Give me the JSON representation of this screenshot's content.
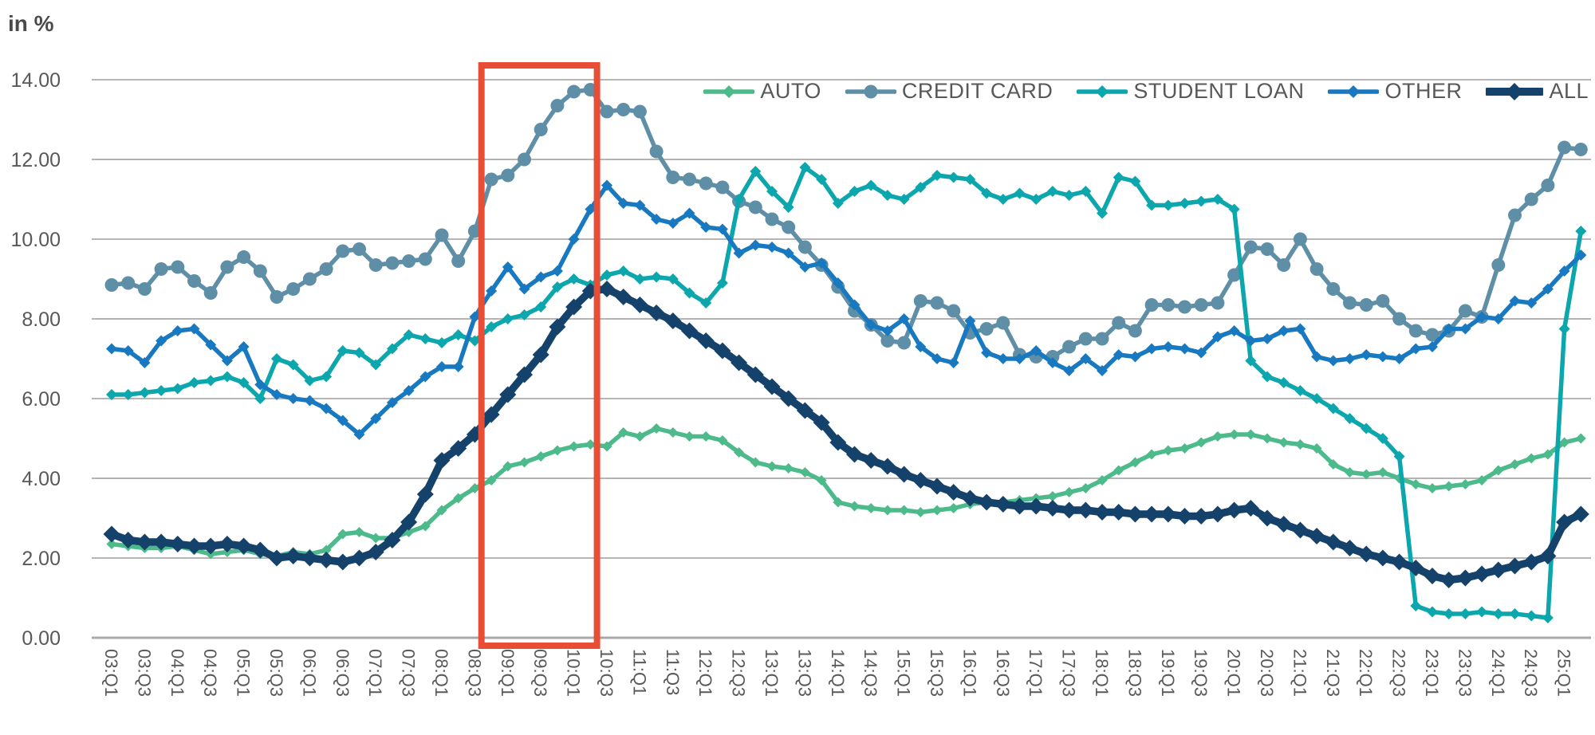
{
  "header": {
    "unit_label": "in %"
  },
  "colors": {
    "grid": "#b5b5b5",
    "axis_zero_line": "#a8a8a8",
    "axis_text": "#595959",
    "legend_text": "#57585a",
    "highlight_box": "#e84e35",
    "background": "#ffffff"
  },
  "legend": {
    "items": [
      {
        "label": "AUTO",
        "color": "#4cba8b",
        "marker": "diamond",
        "thick": false
      },
      {
        "label": "CREDIT CARD",
        "color": "#5f8fa6",
        "marker": "circle",
        "thick": false
      },
      {
        "label": "STUDENT LOAN",
        "color": "#0ca6ad",
        "marker": "diamond",
        "thick": false
      },
      {
        "label": "OTHER",
        "color": "#1879c0",
        "marker": "diamond",
        "thick": false
      },
      {
        "label": "ALL",
        "color": "#14426b",
        "marker": "diamond",
        "thick": true
      }
    ]
  },
  "chart_data": {
    "type": "line",
    "title": "",
    "ylabel": "in %",
    "xlabel": "",
    "ylim": [
      0,
      14
    ],
    "grid": "horizontal",
    "legend_position": "top-right",
    "y_ticks": [
      "14.00",
      "12.00",
      "10.00",
      "8.00",
      "6.00",
      "4.00",
      "2.00",
      "0.00"
    ],
    "x_tick_labels": [
      "03:Q1",
      "03:Q3",
      "04:Q1",
      "04:Q3",
      "05:Q1",
      "05:Q3",
      "06:Q1",
      "06:Q3",
      "07:Q1",
      "07:Q3",
      "08:Q1",
      "08:Q3",
      "09:Q1",
      "09:Q3",
      "10:Q1",
      "10:Q3",
      "11:Q1",
      "11:Q3",
      "12:Q1",
      "12:Q3",
      "13:Q1",
      "13:Q3",
      "14:Q1",
      "14:Q3",
      "15:Q1",
      "15:Q3",
      "16:Q1",
      "16:Q3",
      "17:Q1",
      "17:Q3",
      "18:Q1",
      "18:Q3",
      "19:Q1",
      "19:Q3",
      "20:Q1",
      "20:Q3",
      "21:Q1",
      "21:Q3",
      "22:Q1",
      "22:Q3",
      "23:Q1",
      "23:Q3",
      "24:Q1",
      "24:Q3",
      "25:Q1"
    ],
    "x": [
      "03:Q1",
      "03:Q2",
      "03:Q3",
      "03:Q4",
      "04:Q1",
      "04:Q2",
      "04:Q3",
      "04:Q4",
      "05:Q1",
      "05:Q2",
      "05:Q3",
      "05:Q4",
      "06:Q1",
      "06:Q2",
      "06:Q3",
      "06:Q4",
      "07:Q1",
      "07:Q2",
      "07:Q3",
      "07:Q4",
      "08:Q1",
      "08:Q2",
      "08:Q3",
      "08:Q4",
      "09:Q1",
      "09:Q2",
      "09:Q3",
      "09:Q4",
      "10:Q1",
      "10:Q2",
      "10:Q3",
      "10:Q4",
      "11:Q1",
      "11:Q2",
      "11:Q3",
      "11:Q4",
      "12:Q1",
      "12:Q2",
      "12:Q3",
      "12:Q4",
      "13:Q1",
      "13:Q2",
      "13:Q3",
      "13:Q4",
      "14:Q1",
      "14:Q2",
      "14:Q3",
      "14:Q4",
      "15:Q1",
      "15:Q2",
      "15:Q3",
      "15:Q4",
      "16:Q1",
      "16:Q2",
      "16:Q3",
      "16:Q4",
      "17:Q1",
      "17:Q2",
      "17:Q3",
      "17:Q4",
      "18:Q1",
      "18:Q2",
      "18:Q3",
      "18:Q4",
      "19:Q1",
      "19:Q2",
      "19:Q3",
      "19:Q4",
      "20:Q1",
      "20:Q2",
      "20:Q3",
      "20:Q4",
      "21:Q1",
      "21:Q2",
      "21:Q3",
      "21:Q4",
      "22:Q1",
      "22:Q2",
      "22:Q3",
      "22:Q4",
      "23:Q1",
      "23:Q2",
      "23:Q3",
      "23:Q4",
      "24:Q1",
      "24:Q2",
      "24:Q3",
      "24:Q4",
      "25:Q1",
      "25:Q2"
    ],
    "series": [
      {
        "name": "AUTO",
        "color": "#4cba8b",
        "marker": "diamond",
        "marker_size": 6.5,
        "line_width": 5.5,
        "values": [
          2.35,
          2.3,
          2.25,
          2.25,
          2.3,
          2.2,
          2.1,
          2.15,
          2.2,
          2.1,
          2.05,
          2.15,
          2.1,
          2.2,
          2.6,
          2.65,
          2.5,
          2.5,
          2.65,
          2.8,
          3.2,
          3.5,
          3.75,
          3.95,
          4.3,
          4.4,
          4.55,
          4.7,
          4.8,
          4.85,
          4.8,
          5.15,
          5.05,
          5.25,
          5.15,
          5.05,
          5.05,
          4.95,
          4.65,
          4.4,
          4.3,
          4.25,
          4.15,
          3.95,
          3.4,
          3.3,
          3.25,
          3.2,
          3.2,
          3.15,
          3.2,
          3.25,
          3.35,
          3.4,
          3.4,
          3.45,
          3.5,
          3.55,
          3.65,
          3.75,
          3.95,
          4.2,
          4.4,
          4.6,
          4.7,
          4.75,
          4.9,
          5.05,
          5.1,
          5.1,
          5.0,
          4.9,
          4.85,
          4.75,
          4.35,
          4.15,
          4.1,
          4.15,
          4.0,
          3.85,
          3.75,
          3.8,
          3.85,
          3.95,
          4.2,
          4.35,
          4.5,
          4.6,
          4.9,
          5.0
        ]
      },
      {
        "name": "CREDIT CARD",
        "color": "#5f8fa6",
        "marker": "circle",
        "marker_size": 8.5,
        "line_width": 5.5,
        "values": [
          8.85,
          8.9,
          8.75,
          9.25,
          9.3,
          8.95,
          8.65,
          9.3,
          9.55,
          9.2,
          8.55,
          8.75,
          9.0,
          9.25,
          9.7,
          9.75,
          9.35,
          9.4,
          9.45,
          9.5,
          10.1,
          9.45,
          10.2,
          11.5,
          11.6,
          12.0,
          12.75,
          13.35,
          13.7,
          13.75,
          13.2,
          13.25,
          13.2,
          12.2,
          11.55,
          11.5,
          11.4,
          11.3,
          10.95,
          10.8,
          10.5,
          10.3,
          9.8,
          9.35,
          8.8,
          8.2,
          7.85,
          7.45,
          7.4,
          8.45,
          8.4,
          8.2,
          7.65,
          7.75,
          7.9,
          7.1,
          7.05,
          7.05,
          7.3,
          7.5,
          7.5,
          7.9,
          7.7,
          8.35,
          8.35,
          8.3,
          8.35,
          8.4,
          9.1,
          9.8,
          9.75,
          9.35,
          10.0,
          9.25,
          8.75,
          8.4,
          8.35,
          8.45,
          8.0,
          7.7,
          7.6,
          7.7,
          8.2,
          8.05,
          9.35,
          10.6,
          11.0,
          11.35,
          12.3,
          12.25
        ]
      },
      {
        "name": "STUDENT LOAN",
        "color": "#0ca6ad",
        "marker": "diamond",
        "marker_size": 7,
        "line_width": 5.5,
        "values": [
          6.1,
          6.1,
          6.15,
          6.2,
          6.25,
          6.4,
          6.45,
          6.55,
          6.4,
          6.0,
          7.0,
          6.85,
          6.45,
          6.55,
          7.2,
          7.15,
          6.85,
          7.25,
          7.6,
          7.5,
          7.4,
          7.6,
          7.45,
          7.8,
          8.0,
          8.1,
          8.3,
          8.8,
          9.0,
          8.85,
          9.1,
          9.2,
          9.0,
          9.05,
          9.0,
          8.65,
          8.4,
          8.9,
          11.0,
          11.7,
          11.2,
          10.8,
          11.8,
          11.5,
          10.9,
          11.2,
          11.35,
          11.1,
          11.0,
          11.3,
          11.6,
          11.55,
          11.5,
          11.15,
          11.0,
          11.15,
          11.0,
          11.2,
          11.1,
          11.2,
          10.65,
          11.55,
          11.45,
          10.85,
          10.85,
          10.9,
          10.95,
          11.0,
          10.75,
          6.95,
          6.55,
          6.4,
          6.2,
          6.0,
          5.75,
          5.5,
          5.25,
          5.0,
          4.55,
          0.8,
          0.65,
          0.6,
          0.6,
          0.65,
          0.6,
          0.6,
          0.55,
          0.5,
          7.75,
          10.2
        ]
      },
      {
        "name": "OTHER",
        "color": "#1879c0",
        "marker": "diamond",
        "marker_size": 7,
        "line_width": 5.5,
        "values": [
          7.25,
          7.2,
          6.9,
          7.45,
          7.7,
          7.75,
          7.35,
          6.95,
          7.3,
          6.35,
          6.1,
          6.0,
          5.95,
          5.75,
          5.45,
          5.1,
          5.5,
          5.9,
          6.2,
          6.55,
          6.8,
          6.8,
          8.05,
          8.7,
          9.3,
          8.75,
          9.05,
          9.2,
          10.0,
          10.75,
          11.35,
          10.9,
          10.85,
          10.5,
          10.4,
          10.65,
          10.3,
          10.25,
          9.65,
          9.85,
          9.8,
          9.65,
          9.3,
          9.4,
          8.9,
          8.35,
          7.85,
          7.7,
          8.0,
          7.3,
          7.0,
          6.9,
          7.95,
          7.15,
          7.0,
          7.0,
          7.2,
          6.9,
          6.7,
          7.0,
          6.7,
          7.1,
          7.05,
          7.25,
          7.3,
          7.25,
          7.15,
          7.55,
          7.7,
          7.45,
          7.5,
          7.7,
          7.75,
          7.05,
          6.95,
          7.0,
          7.1,
          7.05,
          7.0,
          7.25,
          7.3,
          7.75,
          7.75,
          8.05,
          8.0,
          8.45,
          8.4,
          8.75,
          9.2,
          9.6
        ]
      },
      {
        "name": "ALL",
        "color": "#14426b",
        "marker": "diamond",
        "marker_size": 10.5,
        "line_width": 9.5,
        "values": [
          2.6,
          2.45,
          2.4,
          2.4,
          2.35,
          2.3,
          2.3,
          2.35,
          2.3,
          2.2,
          2.0,
          2.05,
          2.0,
          1.95,
          1.9,
          2.0,
          2.15,
          2.45,
          2.9,
          3.6,
          4.45,
          4.75,
          5.1,
          5.6,
          6.1,
          6.6,
          7.1,
          7.8,
          8.3,
          8.7,
          8.75,
          8.55,
          8.35,
          8.15,
          7.95,
          7.7,
          7.45,
          7.2,
          6.9,
          6.6,
          6.3,
          6.0,
          5.7,
          5.4,
          4.9,
          4.6,
          4.45,
          4.3,
          4.1,
          3.95,
          3.8,
          3.65,
          3.5,
          3.4,
          3.35,
          3.3,
          3.3,
          3.25,
          3.2,
          3.2,
          3.15,
          3.15,
          3.1,
          3.1,
          3.1,
          3.05,
          3.05,
          3.1,
          3.2,
          3.25,
          3.0,
          2.85,
          2.7,
          2.55,
          2.4,
          2.25,
          2.1,
          2.0,
          1.9,
          1.75,
          1.55,
          1.45,
          1.5,
          1.6,
          1.7,
          1.8,
          1.9,
          2.05,
          2.9,
          3.1
        ]
      }
    ],
    "highlight_box": {
      "color": "#e84e35",
      "start_index": 22.4,
      "end_index": 29.4,
      "covers_quarters": "08:Q3 - 10:Q3"
    }
  }
}
